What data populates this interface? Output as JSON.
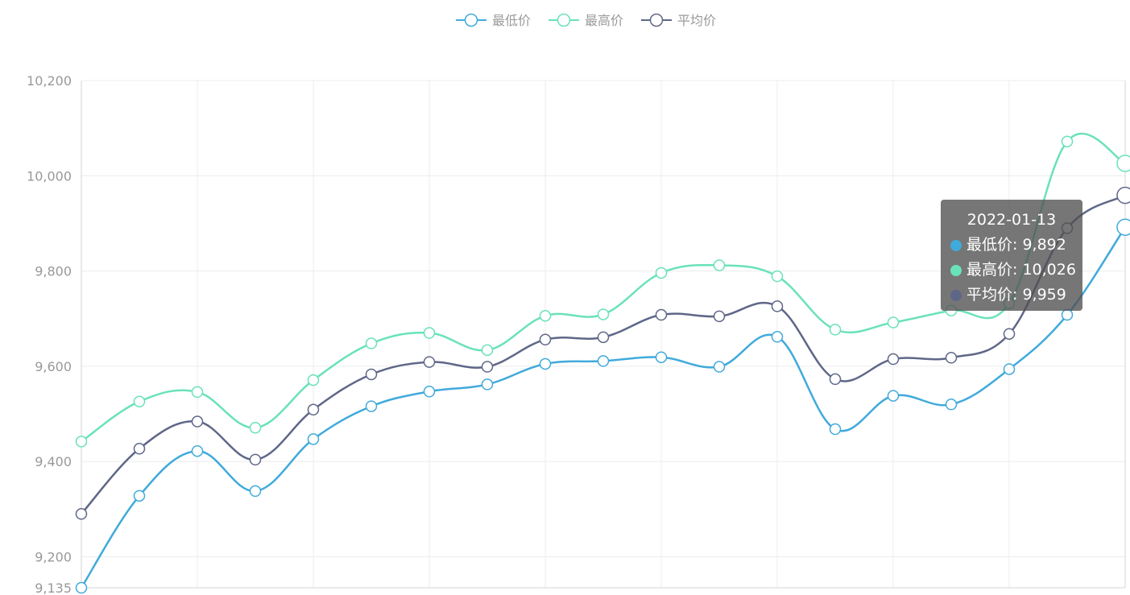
{
  "chart_data": {
    "type": "line",
    "smooth": true,
    "ylim": [
      9135,
      10200
    ],
    "y_ticks": [
      9135,
      9200,
      9400,
      9600,
      9800,
      10000,
      10200
    ],
    "y_tick_labels": [
      "9,135",
      "9,200",
      "9,400",
      "9,600",
      "9,800",
      "10,000",
      "10,200"
    ],
    "legend_position": "top-center",
    "grid": true,
    "series": [
      {
        "name": "最低价",
        "color": "#40aadb",
        "values": [
          9135,
          9328,
          9422,
          9338,
          9447,
          9516,
          9547,
          9562,
          9605,
          9611,
          9619,
          9599,
          9662,
          9468,
          9538,
          9520,
          9594,
          9708,
          9892
        ]
      },
      {
        "name": "最高价",
        "color": "#6ae2b8",
        "values": [
          9442,
          9526,
          9546,
          9471,
          9571,
          9648,
          9670,
          9634,
          9706,
          9709,
          9796,
          9812,
          9789,
          9677,
          9692,
          9717,
          9732,
          10072,
          10026
        ]
      },
      {
        "name": "平均价",
        "color": "#5f6788",
        "values": [
          9290,
          9427,
          9484,
          9404,
          9509,
          9583,
          9609,
          9599,
          9656,
          9661,
          9708,
          9705,
          9726,
          9573,
          9615,
          9618,
          9668,
          9890,
          9959
        ]
      }
    ]
  },
  "tooltip": {
    "date": "2022-01-13",
    "rows": [
      {
        "label": "最低价: 9,892",
        "color": "#40aadb"
      },
      {
        "label": "最高价: 10,026",
        "color": "#6ae2b8"
      },
      {
        "label": "平均价: 9,959",
        "color": "#5f6788"
      }
    ]
  }
}
